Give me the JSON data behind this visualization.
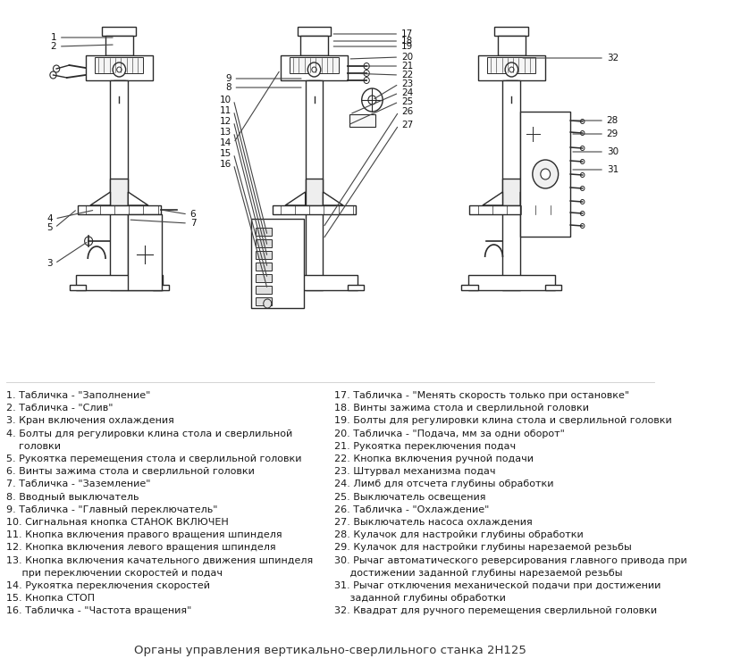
{
  "title": "Органы управления вертикально-сверлильного станка 2Н125",
  "bg_color": "#ffffff",
  "ec": "#2a2a2a",
  "left_items": [
    "1. Табличка - \"Заполнение\"",
    "2. Табличка - \"Слив\"",
    "3. Кран включения охлаждения",
    "4. Болты для регулировки клина стола и сверлильной",
    "    головки",
    "5. Рукоятка перемещения стола и сверлильной головки",
    "6. Винты зажима стола и сверлильной головки",
    "7. Табличка - \"Заземление\"",
    "8. Вводный выключатель",
    "9. Табличка - \"Главный переключатель\"",
    "10. Сигнальная кнопка СТАНОК ВКЛЮЧЕН",
    "11. Кнопка включения правого вращения шпинделя",
    "12. Кнопка включения левого вращения шпинделя",
    "13. Кнопка включения качательного движения шпинделя",
    "     при переключении скоростей и подач",
    "14. Рукоятка переключения скоростей",
    "15. Кнопка СТОП",
    "16. Табличка - \"Частота вращения\""
  ],
  "right_items": [
    "17. Табличка - \"Менять скорость только при остановке\"",
    "18. Винты зажима стола и сверлильной головки",
    "19. Болты для регулировки клина стола и сверлильной головки",
    "20. Табличка - \"Подача, мм за одни оборот\"",
    "21. Рукоятка переключения подач",
    "22. Кнопка включения ручной подачи",
    "23. Штурвал механизма подач",
    "24. Лимб для отсчета глубины обработки",
    "25. Выключатель освещения",
    "26. Табличка - \"Охлаждение\"",
    "27. Выключатель насоса охлаждения",
    "28. Кулачок для настройки глубины обработки",
    "29. Кулачок для настройки глубины нарезаемой резьбы",
    "30. Рычаг автоматического реверсирования главного привода при",
    "     достижении заданной глубины нарезаемой резьбы",
    "31. Рычаг отключения механической подачи при достижении",
    "     заданной глубины обработки",
    "32. Квадрат для ручного перемещения сверлильной головки"
  ]
}
